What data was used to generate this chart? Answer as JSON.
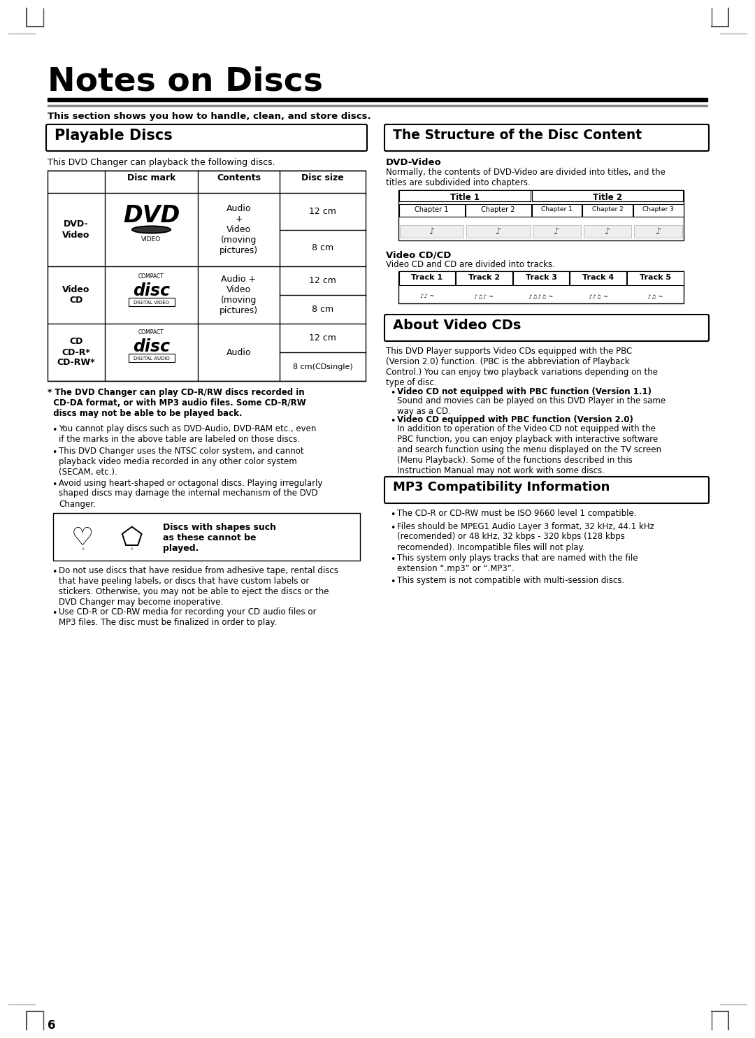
{
  "title": "Notes on Discs",
  "subtitle": "This section shows you how to handle, clean, and store discs.",
  "page_number": "6",
  "bg_color": "#ffffff",
  "text_color": "#000000",
  "section1_title": "Playable Discs",
  "section2_title": "The Structure of the Disc Content",
  "section3_title": "About Video CDs",
  "section4_title": "MP3 Compatibility Information",
  "playable_intro": "This DVD Changer can playback the following discs.",
  "table_headers": [
    "",
    "Disc mark",
    "Contents",
    "Disc size"
  ],
  "dvd_video_label": "DVD-\nVideo",
  "dvd_contents": "Audio\n+\nVideo\n(moving\npictures)",
  "dvd_sizes": [
    "12 cm",
    "8 cm"
  ],
  "videocd_label": "Video\nCD",
  "videocd_contents": "Audio +\nVideo\n(moving\npictures)",
  "videocd_sizes": [
    "12 cm",
    "8 cm"
  ],
  "cd_label": "CD\nCD-R*\nCD-RW*",
  "cd_contents": "Audio",
  "cd_sizes": [
    "12 cm",
    "8 cm(CDsingle)"
  ],
  "star_note_bold": "* The DVD Changer can play CD-R/RW discs recorded in\n  CD-DA format, or with MP3 audio files. Some CD-R/RW\n  discs may not be able to be played back.",
  "bullets_left": [
    "You cannot play discs such as DVD-Audio, DVD-RAM etc., even\nif the marks in the above table are labeled on those discs.",
    "This DVD Changer uses the NTSC color system, and cannot\nplayback video media recorded in any other color system\n(SECAM, etc.).",
    "Avoid using heart-shaped or octagonal discs. Playing irregularly\nshaped discs may damage the internal mechanism of the DVD\nChanger."
  ],
  "disc_box_text": "Discs with shapes such\nas these cannot be\nplayed.",
  "bullets_left2": [
    "Do not use discs that have residue from adhesive tape, rental discs\nthat have peeling labels, or discs that have custom labels or\nstickers. Otherwise, you may not be able to eject the discs or the\nDVD Changer may become inoperative.",
    "Use CD-R or CD-RW media for recording your CD audio files or\nMP3 files. The disc must be finalized in order to play."
  ],
  "dvd_video_section": "DVD-Video",
  "dvd_video_text": "Normally, the contents of DVD-Video are divided into titles, and the\ntitles are subdivided into chapters.",
  "title1_label": "Title 1",
  "title2_label": "Title 2",
  "ch_labels_t1": [
    "Chapter 1",
    "Chapter 2"
  ],
  "ch_labels_t2": [
    "Chapter 1",
    "Chapter 2",
    "Chapter 3"
  ],
  "videocd_section": "Video CD/CD",
  "videocd_text": "Video CD and CD are divided into tracks.",
  "track_labels": [
    "Track 1",
    "Track 2",
    "Track 3",
    "Track 4",
    "Track 5"
  ],
  "about_vcd_text": "This DVD Player supports Video CDs equipped with the PBC\n(Version 2.0) function. (PBC is the abbreviation of Playback\nControl.) You can enjoy two playback variations depending on the\ntype of disc.",
  "vcd_bullet1_title": "Video CD not equipped with PBC function (Version 1.1)",
  "vcd_bullet1_text": "Sound and movies can be played on this DVD Player in the same\nway as a CD.",
  "vcd_bullet2_title": "Video CD equipped with PBC function (Version 2.0)",
  "vcd_bullet2_text": "In addition to operation of the Video CD not equipped with the\nPBC function, you can enjoy playback with interactive software\nand search function using the menu displayed on the TV screen\n(Menu Playback). Some of the functions described in this\nInstruction Manual may not work with some discs.",
  "mp3_bullets": [
    "The CD-R or CD-RW must be ISO 9660 level 1 compatible.",
    "Files should be MPEG1 Audio Layer 3 format, 32 kHz, 44.1 kHz\n(recomended) or 48 kHz, 32 kbps - 320 kbps (128 kbps\nrecomended). Incompatible files will not play.",
    "This system only plays tracks that are named with the file\nextension “.mp3” or “.MP3”.",
    "This system is not compatible with multi-session discs."
  ]
}
